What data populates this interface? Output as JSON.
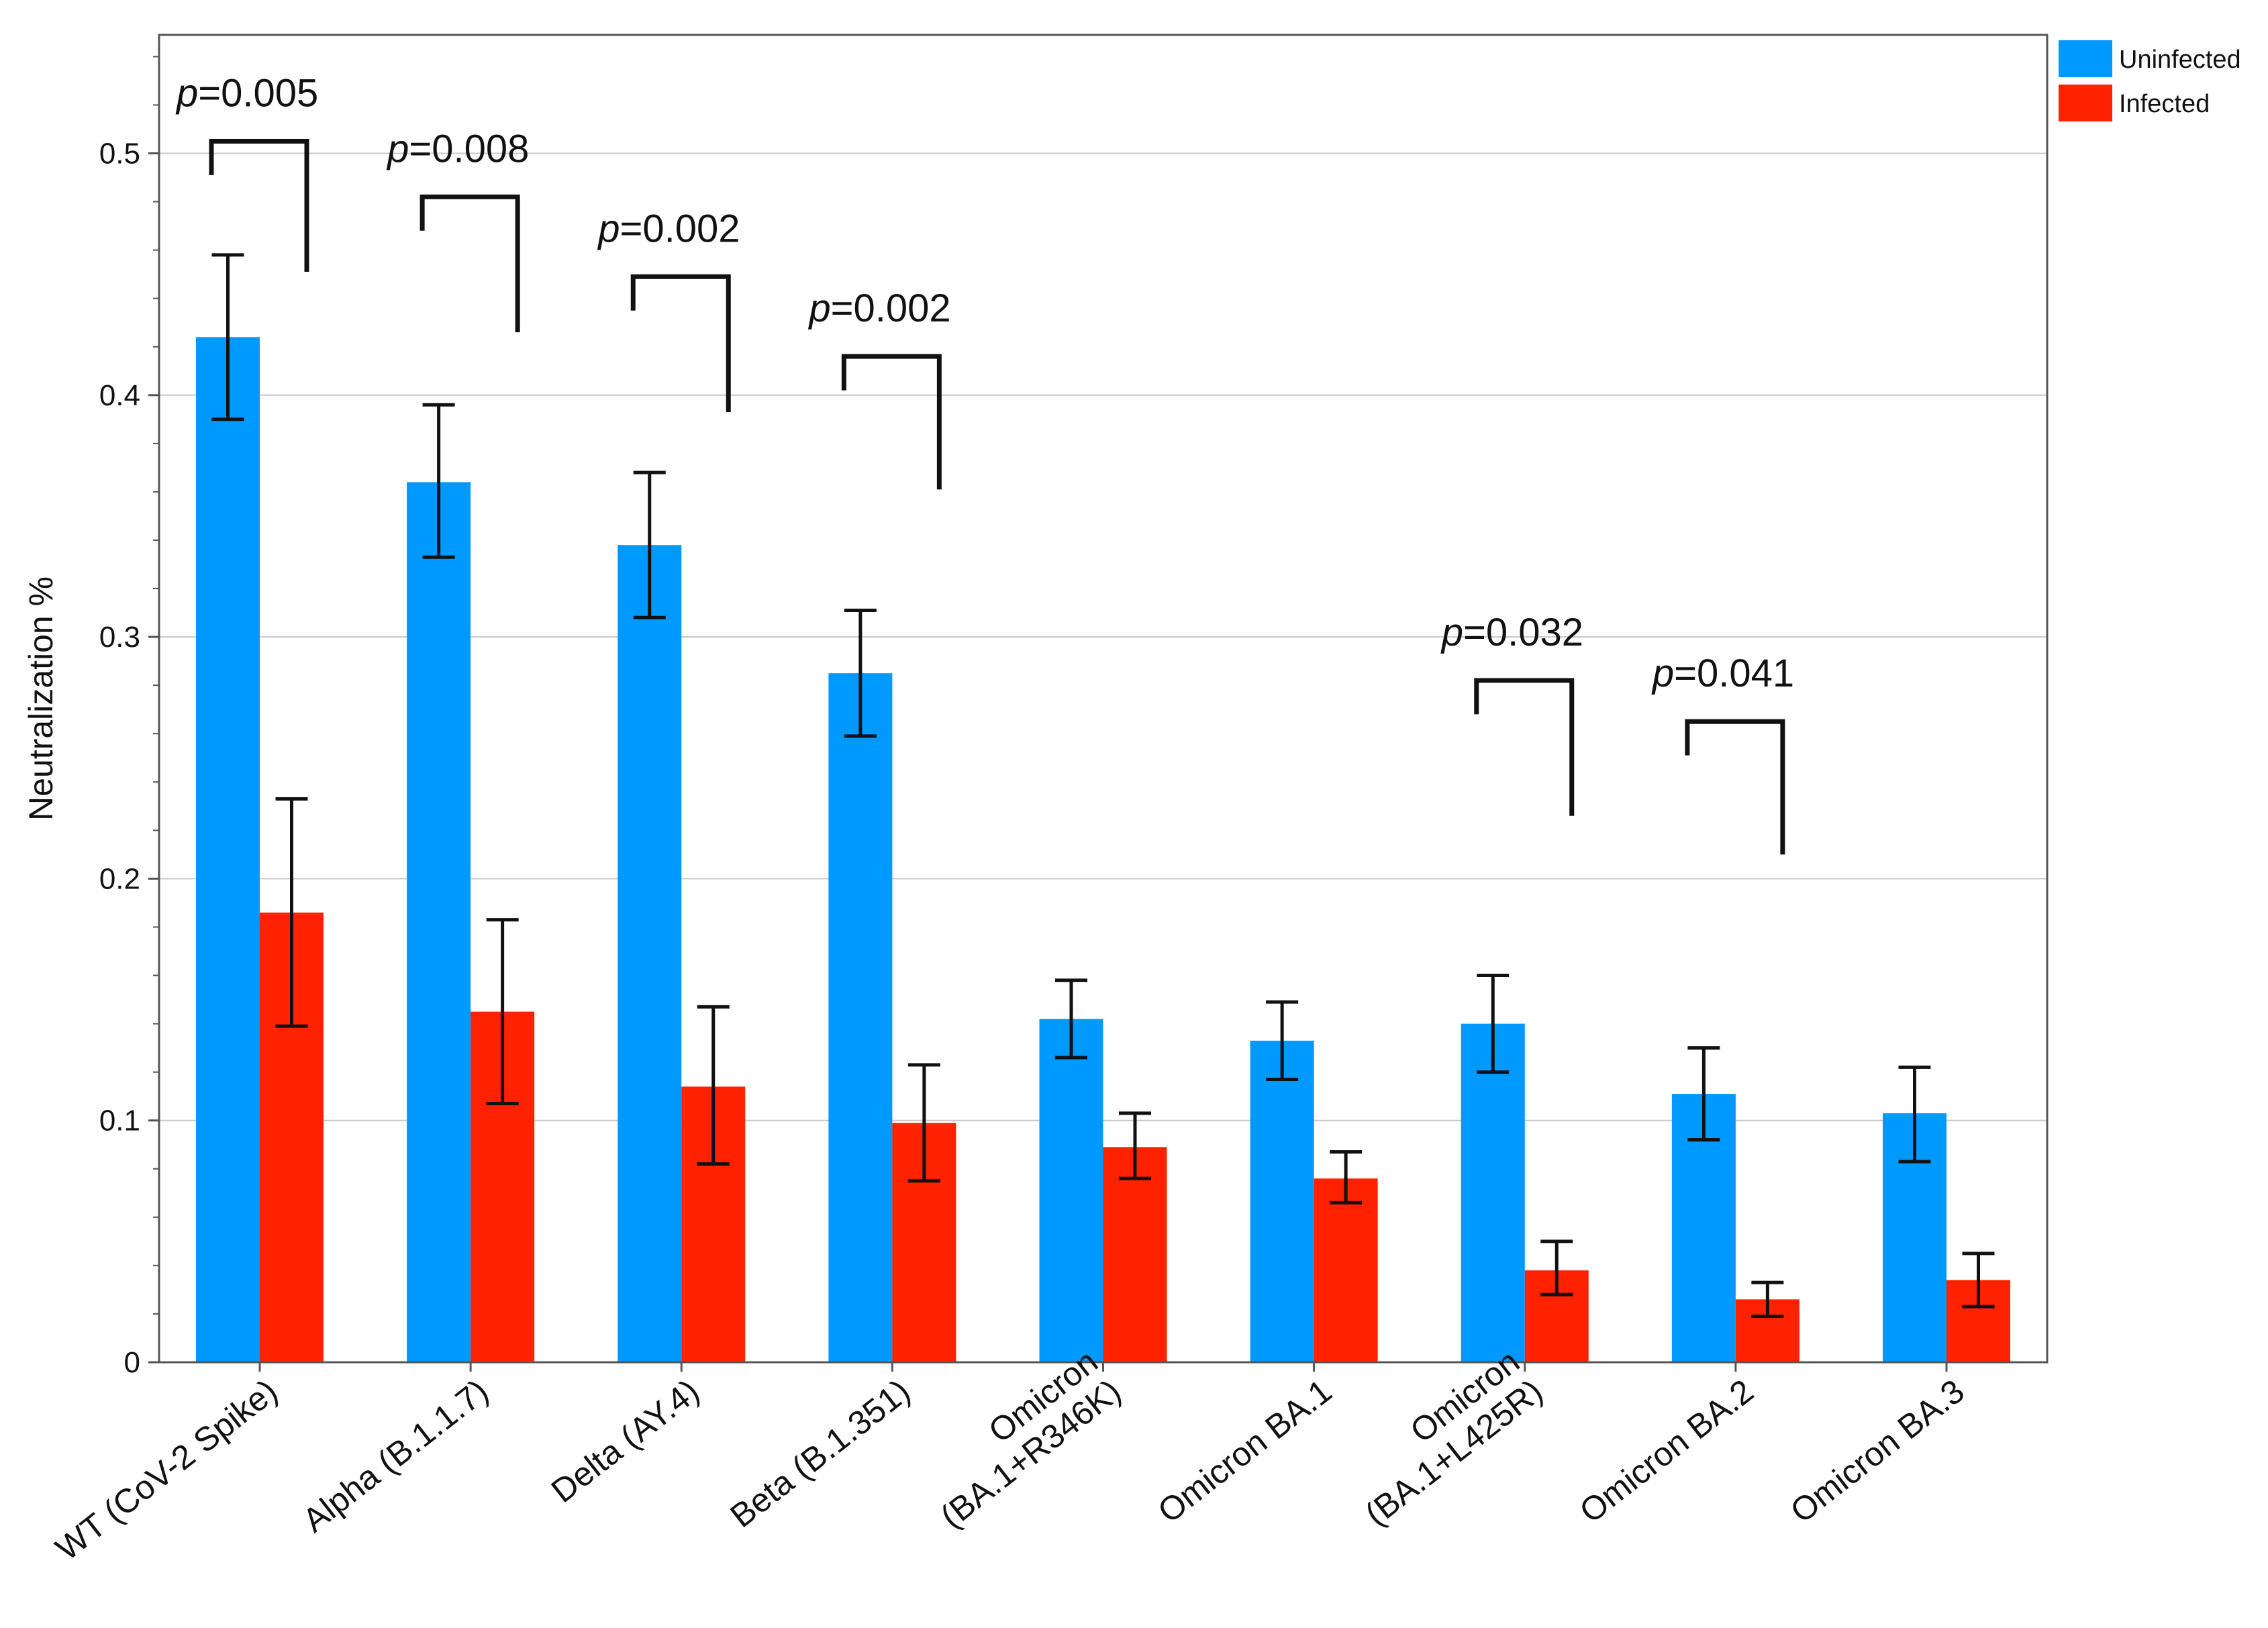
{
  "chart_data": {
    "type": "bar",
    "title": "",
    "xlabel": "",
    "ylabel": "Neutralization %",
    "ylim": [
      0,
      0.55
    ],
    "yticks": [
      "0",
      "0.1",
      "0.2",
      "0.3",
      "0.4",
      "0.5"
    ],
    "grid": true,
    "legend_position": "top-right",
    "categories": [
      [
        "WT (CoV-2 Spike)"
      ],
      [
        "Alpha (B.1.1.7)"
      ],
      [
        "Delta (AY.4)"
      ],
      [
        "Beta (B.1.351)"
      ],
      [
        "Omicron",
        "(BA.1+R346K)"
      ],
      [
        "Omicron BA.1"
      ],
      [
        "Omicron",
        "(BA.1+L425R)"
      ],
      [
        "Omicron BA.2"
      ],
      [
        "Omicron BA.3"
      ]
    ],
    "series": [
      {
        "name": "Uninfected",
        "color": "#0099FF",
        "values": [
          0.424,
          0.364,
          0.338,
          0.285,
          0.142,
          0.133,
          0.14,
          0.111,
          0.103
        ],
        "error_low": [
          0.39,
          0.333,
          0.308,
          0.259,
          0.126,
          0.117,
          0.12,
          0.092,
          0.083
        ],
        "error_high": [
          0.458,
          0.396,
          0.368,
          0.311,
          0.158,
          0.149,
          0.16,
          0.13,
          0.122
        ]
      },
      {
        "name": "Infected",
        "color": "#FF2200",
        "values": [
          0.186,
          0.145,
          0.114,
          0.099,
          0.089,
          0.076,
          0.038,
          0.026,
          0.034
        ],
        "error_low": [
          0.139,
          0.107,
          0.082,
          0.075,
          0.076,
          0.066,
          0.028,
          0.019,
          0.023
        ],
        "error_high": [
          0.233,
          0.183,
          0.147,
          0.123,
          0.103,
          0.087,
          0.05,
          0.033,
          0.045
        ]
      }
    ],
    "annotations": [
      {
        "category_index": 0,
        "text": "0.005",
        "bracket_top": 0.505,
        "left_end": 0.491,
        "right_end": 0.451
      },
      {
        "category_index": 1,
        "text": "0.008",
        "bracket_top": 0.482,
        "left_end": 0.468,
        "right_end": 0.426
      },
      {
        "category_index": 2,
        "text": "0.002",
        "bracket_top": 0.449,
        "left_end": 0.435,
        "right_end": 0.393
      },
      {
        "category_index": 3,
        "text": "0.002",
        "bracket_top": 0.416,
        "left_end": 0.402,
        "right_end": 0.361
      },
      {
        "category_index": 6,
        "text": "0.032",
        "bracket_top": 0.282,
        "left_end": 0.268,
        "right_end": 0.226
      },
      {
        "category_index": 7,
        "text": "0.041",
        "bracket_top": 0.265,
        "left_end": 0.251,
        "right_end": 0.21
      }
    ],
    "p_prefix": "p",
    "p_equals": "="
  }
}
